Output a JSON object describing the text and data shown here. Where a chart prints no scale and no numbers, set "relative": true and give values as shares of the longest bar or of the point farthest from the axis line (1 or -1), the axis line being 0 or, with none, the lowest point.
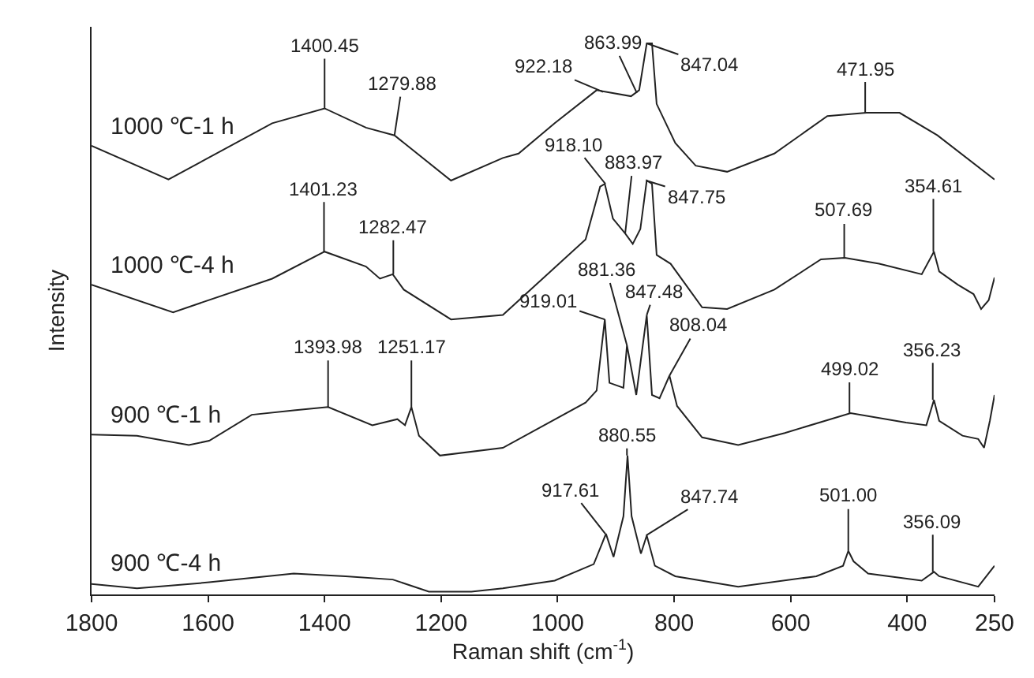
{
  "chart_data": {
    "type": "line",
    "relative": true,
    "xlabel": "Raman shift (cm$^{-1}$)",
    "ylabel": "Intensity",
    "xlim": [
      1800,
      250
    ],
    "xticks": [
      1800,
      1600,
      1400,
      1200,
      1000,
      800,
      600,
      400,
      250
    ],
    "legend": false,
    "marker": "none",
    "line_style": "solid",
    "series": [
      {
        "name": "1000 ℃-1 h",
        "color": "#222222",
        "x": [
          1800,
          1668,
          1490,
          1400,
          1329,
          1280,
          1183,
          1094,
          1067,
          1005,
          933,
          874,
          860,
          847,
          838,
          830,
          798,
          763,
          709,
          628,
          537,
          470,
          413,
          348,
          250
        ],
        "values": [
          0.814,
          0.753,
          0.855,
          0.882,
          0.847,
          0.833,
          0.751,
          0.792,
          0.8,
          0.855,
          0.915,
          0.904,
          0.915,
          1.0,
          1.0,
          0.89,
          0.819,
          0.778,
          0.767,
          0.8,
          0.868,
          0.874,
          0.874,
          0.833,
          0.753
        ]
      },
      {
        "name": "1000 ℃-4 h",
        "color": "#222222",
        "x": [
          1800,
          1660,
          1490,
          1400,
          1329,
          1305,
          1283,
          1264,
          1183,
          1094,
          952,
          927,
          919,
          905,
          884,
          871,
          858,
          847,
          838,
          830,
          806,
          752,
          709,
          628,
          548,
          507,
          448,
          375,
          354,
          345,
          313,
          286,
          273,
          260,
          250
        ],
        "values": [
          0.562,
          0.512,
          0.573,
          0.622,
          0.595,
          0.573,
          0.581,
          0.553,
          0.499,
          0.507,
          0.644,
          0.74,
          0.745,
          0.682,
          0.655,
          0.636,
          0.663,
          0.751,
          0.745,
          0.616,
          0.6,
          0.521,
          0.518,
          0.553,
          0.608,
          0.611,
          0.6,
          0.581,
          0.622,
          0.586,
          0.562,
          0.545,
          0.518,
          0.534,
          0.575
        ]
      },
      {
        "name": "900 ℃-1 h",
        "color": "#222222",
        "x": [
          1800,
          1722,
          1633,
          1598,
          1525,
          1453,
          1394,
          1318,
          1275,
          1262,
          1251,
          1238,
          1202,
          1094,
          952,
          933,
          919,
          911,
          887,
          881,
          865,
          847,
          838,
          825,
          808,
          795,
          752,
          690,
          610,
          497,
          402,
          367,
          354,
          345,
          305,
          278,
          268,
          258,
          250
        ],
        "values": [
          0.29,
          0.288,
          0.271,
          0.279,
          0.326,
          0.334,
          0.34,
          0.307,
          0.318,
          0.307,
          0.34,
          0.288,
          0.252,
          0.266,
          0.348,
          0.37,
          0.499,
          0.384,
          0.375,
          0.452,
          0.362,
          0.507,
          0.362,
          0.356,
          0.397,
          0.342,
          0.285,
          0.271,
          0.293,
          0.329,
          0.312,
          0.307,
          0.353,
          0.315,
          0.288,
          0.282,
          0.266,
          0.315,
          0.362
        ]
      },
      {
        "name": "900 ℃-4 h",
        "color": "#222222",
        "x": [
          1800,
          1722,
          1598,
          1453,
          1364,
          1283,
          1221,
          1148,
          1094,
          1005,
          938,
          917,
          904,
          887,
          880,
          873,
          857,
          847,
          833,
          798,
          690,
          556,
          510,
          501,
          492,
          467,
          375,
          354,
          345,
          278,
          250
        ],
        "values": [
          0.019,
          0.011,
          0.022,
          0.038,
          0.033,
          0.027,
          0.005,
          0.005,
          0.011,
          0.025,
          0.055,
          0.11,
          0.068,
          0.142,
          0.252,
          0.142,
          0.074,
          0.107,
          0.052,
          0.033,
          0.014,
          0.033,
          0.052,
          0.079,
          0.06,
          0.038,
          0.025,
          0.041,
          0.033,
          0.014,
          0.052
        ]
      }
    ],
    "annotations": [
      {
        "text": "1400.45",
        "x": 1400,
        "y": 0.882
      },
      {
        "text": "1279.88",
        "x": 1280,
        "y": 0.833
      },
      {
        "text": "922.18",
        "x": 922,
        "y": 0.912
      },
      {
        "text": "863.99",
        "x": 864,
        "y": 0.91
      },
      {
        "text": "847.04",
        "x": 847,
        "y": 1.0
      },
      {
        "text": "471.95",
        "x": 472,
        "y": 0.874
      },
      {
        "text": "1401.23",
        "x": 1401,
        "y": 0.622
      },
      {
        "text": "1282.47",
        "x": 1282,
        "y": 0.581
      },
      {
        "text": "918.10",
        "x": 918,
        "y": 0.745
      },
      {
        "text": "883.97",
        "x": 884,
        "y": 0.655
      },
      {
        "text": "847.75",
        "x": 848,
        "y": 0.751
      },
      {
        "text": "507.69",
        "x": 508,
        "y": 0.611
      },
      {
        "text": "354.61",
        "x": 355,
        "y": 0.622
      },
      {
        "text": "1393.98",
        "x": 1394,
        "y": 0.34
      },
      {
        "text": "1251.17",
        "x": 1251,
        "y": 0.34
      },
      {
        "text": "919.01",
        "x": 919,
        "y": 0.499
      },
      {
        "text": "881.36",
        "x": 881,
        "y": 0.452
      },
      {
        "text": "847.48",
        "x": 847,
        "y": 0.507
      },
      {
        "text": "808.04",
        "x": 808,
        "y": 0.397
      },
      {
        "text": "499.02",
        "x": 499,
        "y": 0.329
      },
      {
        "text": "356.23",
        "x": 356,
        "y": 0.353
      },
      {
        "text": "917.61",
        "x": 918,
        "y": 0.11
      },
      {
        "text": "880.55",
        "x": 881,
        "y": 0.252
      },
      {
        "text": "847.74",
        "x": 848,
        "y": 0.107
      },
      {
        "text": "501.00",
        "x": 501,
        "y": 0.079
      },
      {
        "text": "356.09",
        "x": 356,
        "y": 0.041
      }
    ]
  }
}
